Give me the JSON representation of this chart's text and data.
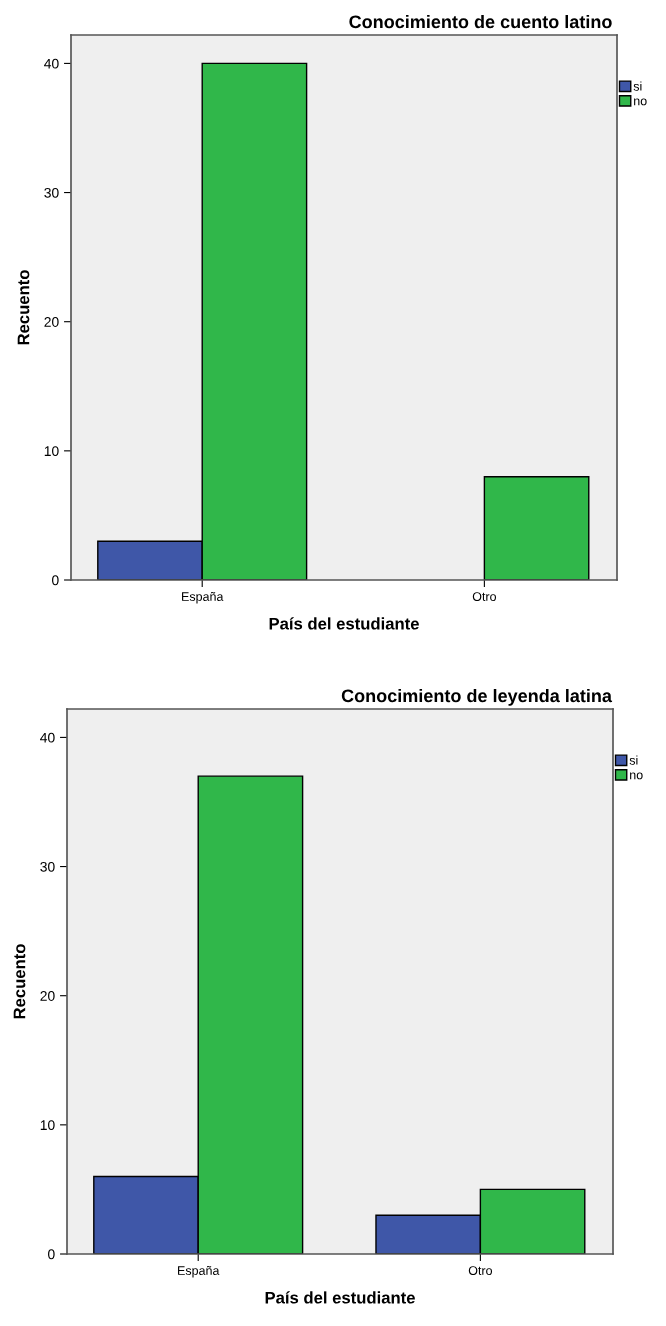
{
  "chart_data": [
    {
      "type": "bar",
      "title": "Conocimiento de cuento latino",
      "xlabel": "País del estudiante",
      "ylabel": "Recuento",
      "categories": [
        "España",
        "Otro"
      ],
      "series": [
        {
          "name": "si",
          "color": "#3f57a8",
          "values": [
            3,
            0
          ]
        },
        {
          "name": "no",
          "color": "#30b74a",
          "values": [
            40,
            8
          ]
        }
      ],
      "ylim": [
        0,
        42.2
      ],
      "yticks": [
        0,
        10,
        20,
        30,
        40
      ],
      "grid": false,
      "legend": "top right"
    },
    {
      "type": "bar",
      "title": "Conocimiento de leyenda latina",
      "xlabel": "País del estudiante",
      "ylabel": "Recuento",
      "categories": [
        "España",
        "Otro"
      ],
      "series": [
        {
          "name": "si",
          "color": "#3f57a8",
          "values": [
            6,
            3
          ]
        },
        {
          "name": "no",
          "color": "#30b74a",
          "values": [
            37,
            5
          ]
        }
      ],
      "ylim": [
        0,
        42.2
      ],
      "yticks": [
        0,
        10,
        20,
        30,
        40
      ],
      "grid": false,
      "legend": "top right"
    }
  ]
}
